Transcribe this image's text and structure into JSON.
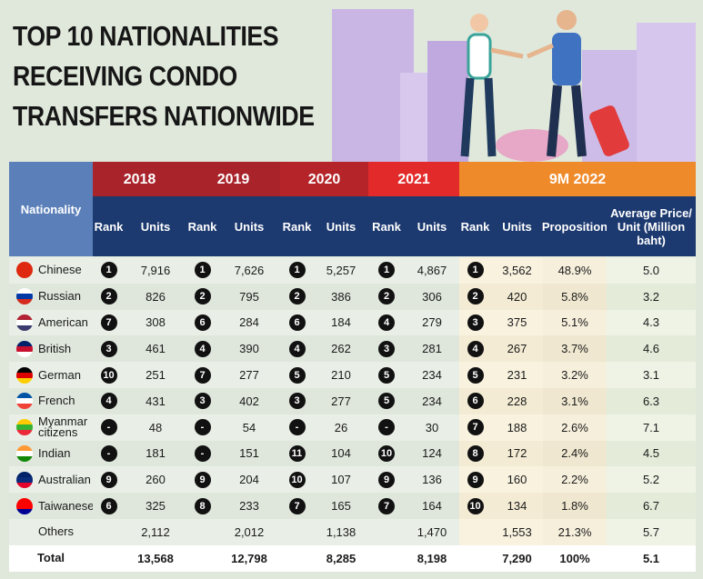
{
  "header": {
    "title": [
      "TOP 10 NATIONALITIES",
      "RECEIVING CONDO",
      "TRANSFERS NATIONWIDE"
    ]
  },
  "table": {
    "nationality_header": "Nationality",
    "years": [
      "2018",
      "2019",
      "2020",
      "2021",
      "9M 2022"
    ],
    "subheaders": [
      "Rank",
      "Units"
    ],
    "extra_headers": [
      "Proposition",
      "Average Price/ Unit (Million baht)"
    ],
    "rows": [
      {
        "nationality": "Chinese",
        "ranks": [
          "1",
          "1",
          "1",
          "1",
          "1"
        ],
        "units": [
          "7,916",
          "7,626",
          "5,257",
          "4,867",
          "3,562"
        ],
        "proposition": "48.9%",
        "price": "5.0"
      },
      {
        "nationality": "Russian",
        "ranks": [
          "2",
          "2",
          "2",
          "2",
          "2"
        ],
        "units": [
          "826",
          "795",
          "386",
          "306",
          "420"
        ],
        "proposition": "5.8%",
        "price": "3.2"
      },
      {
        "nationality": "American",
        "ranks": [
          "7",
          "6",
          "6",
          "4",
          "3"
        ],
        "units": [
          "308",
          "284",
          "184",
          "279",
          "375"
        ],
        "proposition": "5.1%",
        "price": "4.3"
      },
      {
        "nationality": "British",
        "ranks": [
          "3",
          "4",
          "4",
          "3",
          "4"
        ],
        "units": [
          "461",
          "390",
          "262",
          "281",
          "267"
        ],
        "proposition": "3.7%",
        "price": "4.6"
      },
      {
        "nationality": "German",
        "ranks": [
          "10",
          "7",
          "5",
          "5",
          "5"
        ],
        "units": [
          "251",
          "277",
          "210",
          "234",
          "231"
        ],
        "proposition": "3.2%",
        "price": "3.1"
      },
      {
        "nationality": "French",
        "ranks": [
          "4",
          "3",
          "3",
          "5",
          "6"
        ],
        "units": [
          "431",
          "402",
          "277",
          "234",
          "228"
        ],
        "proposition": "3.1%",
        "price": "6.3"
      },
      {
        "nationality": "Myanmar citizens",
        "ranks": [
          "-",
          "-",
          "-",
          "-",
          "7"
        ],
        "units": [
          "48",
          "54",
          "26",
          "30",
          "188"
        ],
        "proposition": "2.6%",
        "price": "7.1"
      },
      {
        "nationality": "Indian",
        "ranks": [
          "-",
          "-",
          "11",
          "10",
          "8"
        ],
        "units": [
          "181",
          "151",
          "104",
          "124",
          "172"
        ],
        "proposition": "2.4%",
        "price": "4.5"
      },
      {
        "nationality": "Australian",
        "ranks": [
          "9",
          "9",
          "10",
          "9",
          "9"
        ],
        "units": [
          "260",
          "204",
          "107",
          "136",
          "160"
        ],
        "proposition": "2.2%",
        "price": "5.2"
      },
      {
        "nationality": "Taiwanese",
        "ranks": [
          "6",
          "8",
          "7",
          "7",
          "10"
        ],
        "units": [
          "325",
          "233",
          "165",
          "164",
          "134"
        ],
        "proposition": "1.8%",
        "price": "6.7"
      },
      {
        "nationality": "Others",
        "units": [
          "2,112",
          "2,012",
          "1,138",
          "1,470",
          "1,553"
        ],
        "proposition": "21.3%",
        "price": "5.7"
      },
      {
        "nationality": "Total",
        "units": [
          "13,568",
          "12,798",
          "8,285",
          "8,198",
          "7,290"
        ],
        "proposition": "100%",
        "price": "5.1"
      }
    ]
  }
}
